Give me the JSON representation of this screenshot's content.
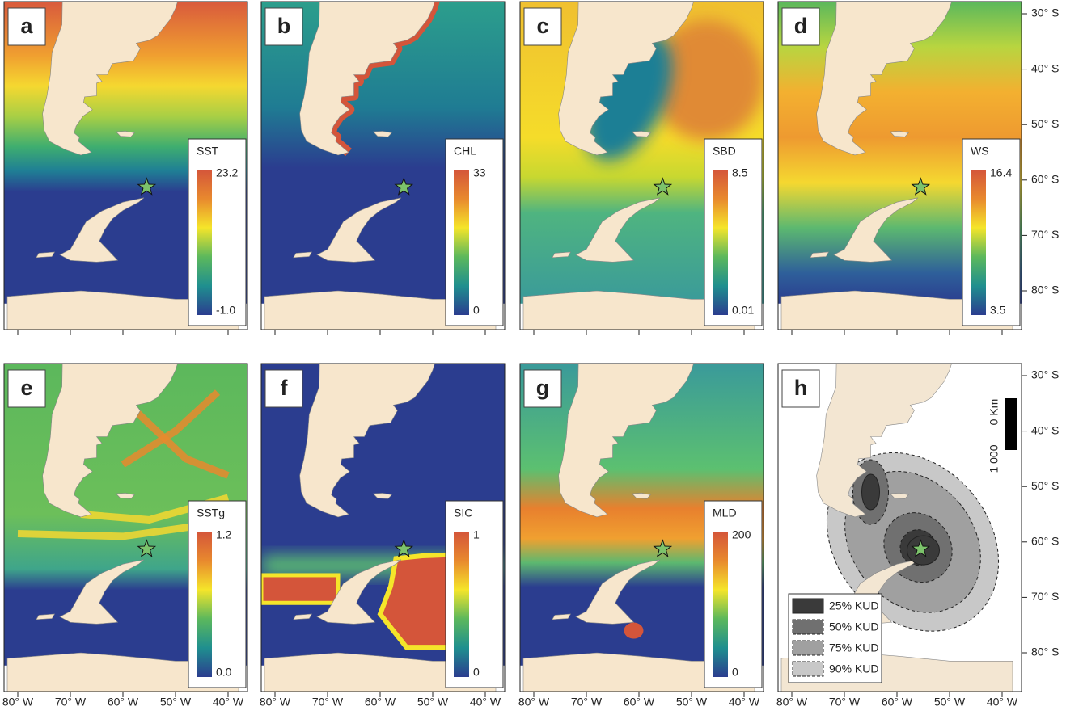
{
  "panels": [
    {
      "letter": "a",
      "legend": {
        "title": "SST",
        "max": "23.2",
        "min": "-1.0"
      }
    },
    {
      "letter": "b",
      "legend": {
        "title": "CHL",
        "max": "33",
        "min": "0"
      }
    },
    {
      "letter": "c",
      "legend": {
        "title": "SBD",
        "max": "8.5",
        "min": "0.01"
      }
    },
    {
      "letter": "d",
      "legend": {
        "title": "WS",
        "max": "16.4",
        "min": "3.5"
      }
    },
    {
      "letter": "e",
      "legend": {
        "title": "SSTg",
        "max": "1.2",
        "min": "0.0"
      }
    },
    {
      "letter": "f",
      "legend": {
        "title": "SIC",
        "max": "1",
        "min": "0"
      }
    },
    {
      "letter": "g",
      "legend": {
        "title": "MLD",
        "max": "200",
        "min": "0"
      }
    }
  ],
  "kud_panel": {
    "letter": "h",
    "legend": [
      "25% KUD",
      "50% KUD",
      "75% KUD",
      "90% KUD"
    ],
    "scale_bar": {
      "top": "0 Km",
      "bottom": "1 000"
    }
  },
  "lat_labels": [
    "30° S",
    "40° S",
    "50° S",
    "60° S",
    "70° S",
    "80° S"
  ],
  "lon_labels": [
    "80° W",
    "70° W",
    "60° W",
    "50° W",
    "40° W"
  ]
}
